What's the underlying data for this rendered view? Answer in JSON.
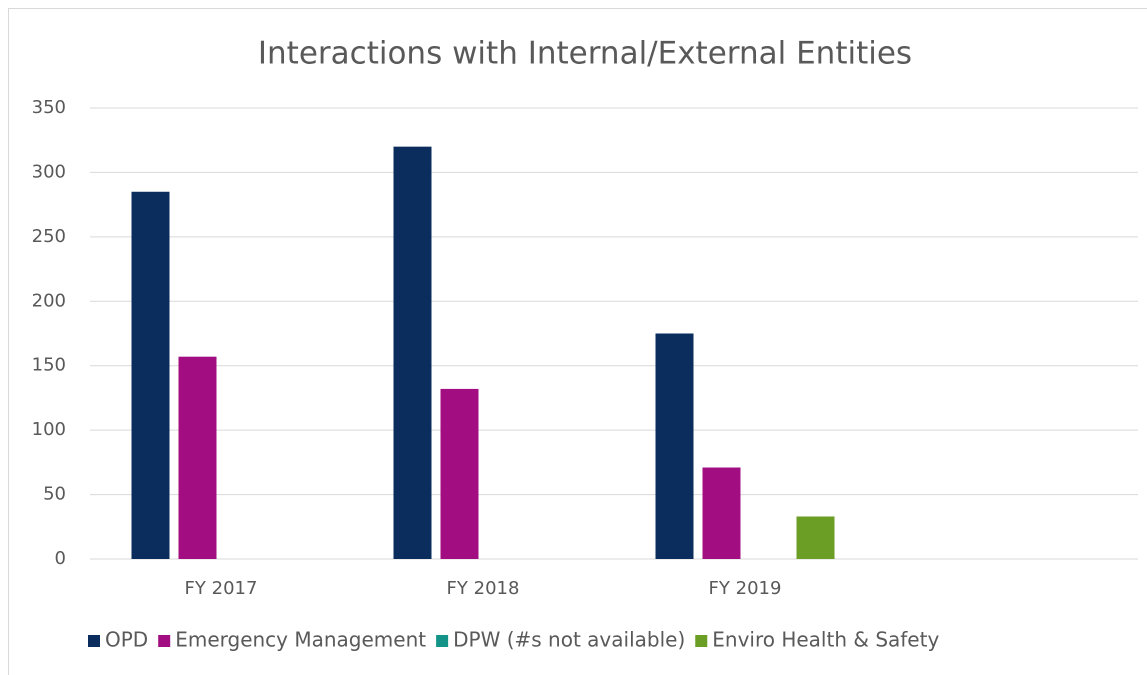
{
  "chart_data": {
    "type": "bar",
    "title": "Interactions with Internal/External Entities",
    "categories": [
      "FY 2017",
      "FY 2018",
      "FY 2019",
      null
    ],
    "series": [
      {
        "name": "OPD",
        "color": "#0a2d5e",
        "values": [
          285,
          320,
          175,
          null
        ]
      },
      {
        "name": "Emergency Management",
        "color": "#a30d82",
        "values": [
          157,
          132,
          71,
          null
        ]
      },
      {
        "name": "DPW (#s not available)",
        "color": "#149488",
        "values": [
          null,
          null,
          null,
          null
        ]
      },
      {
        "name": "Enviro Health & Safety",
        "color": "#6a9e24",
        "values": [
          null,
          null,
          33,
          null
        ]
      }
    ],
    "ylim": [
      0,
      350
    ],
    "yticks": [
      0,
      50,
      100,
      150,
      200,
      250,
      300,
      350
    ],
    "grid": true,
    "legend": "bottom"
  }
}
